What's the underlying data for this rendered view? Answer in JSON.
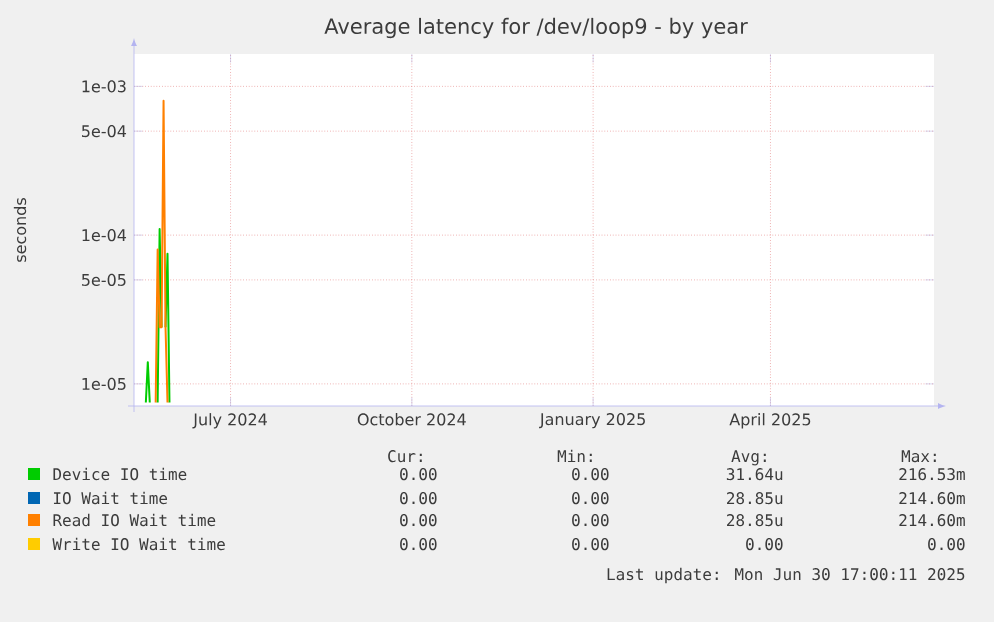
{
  "chart_data": {
    "type": "line",
    "title": "Average latency for /dev/loop9 - by year",
    "ylabel": "seconds",
    "log": "y",
    "grid": true,
    "legend": "bottom",
    "marker": "none",
    "line_style": "solid",
    "xlim": [
      "2024-05-13",
      "2025-06-23"
    ],
    "ylim": [
      7.1e-06,
      0.00165
    ],
    "xticks": [
      {
        "value": "2024-07-01",
        "label": "July 2024"
      },
      {
        "value": "2024-10-01",
        "label": "October 2024"
      },
      {
        "value": "2025-01-01",
        "label": "January 2025"
      },
      {
        "value": "2025-04-01",
        "label": "April 2025"
      }
    ],
    "yticks": [
      {
        "value": 1e-05,
        "label": "1e-05"
      },
      {
        "value": 5e-05,
        "label": "5e-05"
      },
      {
        "value": 0.0001,
        "label": "1e-04"
      },
      {
        "value": 0.0005,
        "label": "5e-04"
      },
      {
        "value": 0.001,
        "label": "1e-03"
      }
    ],
    "series": [
      {
        "name": "Device IO time",
        "color": "#00cc00",
        "x": [
          "2024-05-19",
          "2024-05-20",
          "2024-05-21",
          "2024-05-22",
          "2024-05-25",
          "2024-05-26",
          "2024-05-27",
          "2024-05-28",
          "2024-05-29",
          "2024-05-30",
          "2024-05-31"
        ],
        "values": [
          7.5e-06,
          1.4e-05,
          7.5e-06,
          null,
          7.5e-06,
          0.00011,
          2.4e-05,
          null,
          2.4e-05,
          7.5e-05,
          7.5e-06
        ]
      },
      {
        "name": "IO Wait time",
        "color": "#0066b3"
      },
      {
        "name": "Read IO Wait time",
        "color": "#ff8000",
        "x": [
          "2024-05-24",
          "2024-05-25",
          "2024-05-26",
          "2024-05-27",
          "2024-05-28",
          "2024-05-29",
          "2024-05-30"
        ],
        "values": [
          7.5e-06,
          8e-05,
          2.4e-05,
          2.4e-05,
          0.0008,
          2.4e-05,
          7.5e-06
        ]
      },
      {
        "name": "Write IO Wait time",
        "color": "#ffcc00"
      }
    ],
    "annotations": [
      "Cur:",
      "Min:",
      "Avg:",
      "Max:",
      "0.00",
      "0.00",
      "31.64u",
      "216.53m",
      "0.00",
      "0.00",
      "28.85u",
      "214.60m",
      "0.00",
      "0.00",
      "28.85u",
      "214.60m",
      "0.00",
      "0.00",
      "0.00",
      "0.00",
      "Last update: Mon Jun 30 17:00:11 2025"
    ]
  }
}
